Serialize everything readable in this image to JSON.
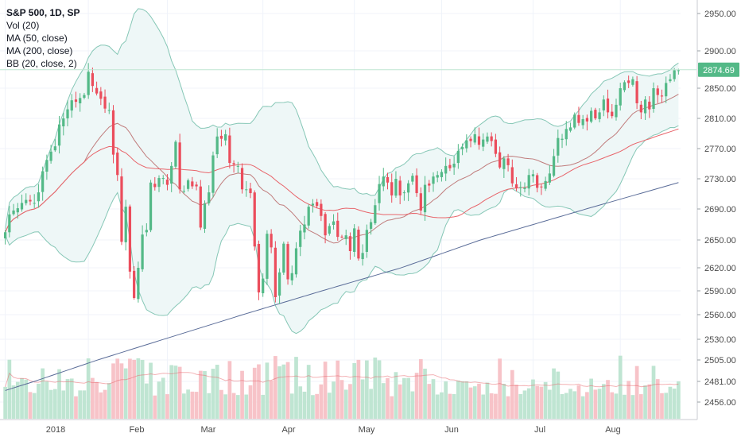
{
  "chart_data": {
    "type": "candlestick",
    "symbol": "S&P 500, 1D, SP",
    "legend": [
      "Vol (20)",
      "MA (50, close)",
      "MA (200, close)",
      "BB (20, close, 2)"
    ],
    "last_price_label": "2874.69",
    "y_axis_ticks": [
      "2950.00",
      "2900.00",
      "2850.00",
      "2810.00",
      "2770.00",
      "2730.00",
      "2690.00",
      "2650.00",
      "2620.00",
      "2590.00",
      "2560.00",
      "2530.00",
      "2505.00",
      "2481.00",
      "2456.00"
    ],
    "x_axis_ticks": [
      "2018",
      "Feb",
      "Mar",
      "Apr",
      "May",
      "Jun",
      "Jul",
      "Aug"
    ],
    "colors": {
      "up": "#53b987",
      "down": "#eb4d5c",
      "vol_up": "#bfe5d2",
      "vol_down": "#f7c3c8",
      "ma50": "#e8646a",
      "ma200": "#5a6c98",
      "bb_line": "#86c7b6",
      "bb_fill": "#eef7f7",
      "basis": "#c07c7c",
      "axis_text": "#4a4a4a",
      "grid": "#f0f3fa"
    },
    "series": {
      "close": [
        2660,
        2683,
        2688,
        2691,
        2698,
        2702,
        2700,
        2698,
        2712,
        2740,
        2755,
        2766,
        2773,
        2802,
        2810,
        2822,
        2834,
        2832,
        2837,
        2841,
        2872,
        2853,
        2843,
        2836,
        2823,
        2821,
        2762,
        2735,
        2648,
        2693,
        2615,
        2581,
        2620,
        2657,
        2663,
        2725,
        2719,
        2731,
        2731,
        2722,
        2747,
        2779,
        2716,
        2714,
        2728,
        2720,
        2720,
        2666,
        2697,
        2712,
        2761,
        2786,
        2783,
        2789,
        2751,
        2749,
        2747,
        2716,
        2716,
        2711,
        2643,
        2588,
        2606,
        2658,
        2642,
        2582,
        2614,
        2646,
        2605,
        2613,
        2641,
        2662,
        2670,
        2693,
        2697,
        2694,
        2681,
        2656,
        2668,
        2674,
        2654,
        2654,
        2656,
        2638,
        2665,
        2630,
        2636,
        2663,
        2673,
        2695,
        2723,
        2733,
        2725,
        2708,
        2730,
        2708,
        2712,
        2724,
        2734,
        2711,
        2688,
        2722,
        2721,
        2733,
        2735,
        2739,
        2747,
        2744,
        2750,
        2767,
        2772,
        2781,
        2780,
        2789,
        2775,
        2782,
        2786,
        2780,
        2763,
        2745,
        2757,
        2748,
        2724,
        2718,
        2719,
        2718,
        2735,
        2736,
        2718,
        2719,
        2727,
        2737,
        2760,
        2784,
        2783,
        2796,
        2798,
        2815,
        2804,
        2809,
        2806,
        2820,
        2810,
        2818,
        2835,
        2818,
        2813,
        2828,
        2850,
        2858,
        2857,
        2862,
        2830,
        2818,
        2835,
        2822,
        2850,
        2841,
        2839,
        2857,
        2862,
        2874,
        2874
      ],
      "close_count_note": null
    }
  }
}
